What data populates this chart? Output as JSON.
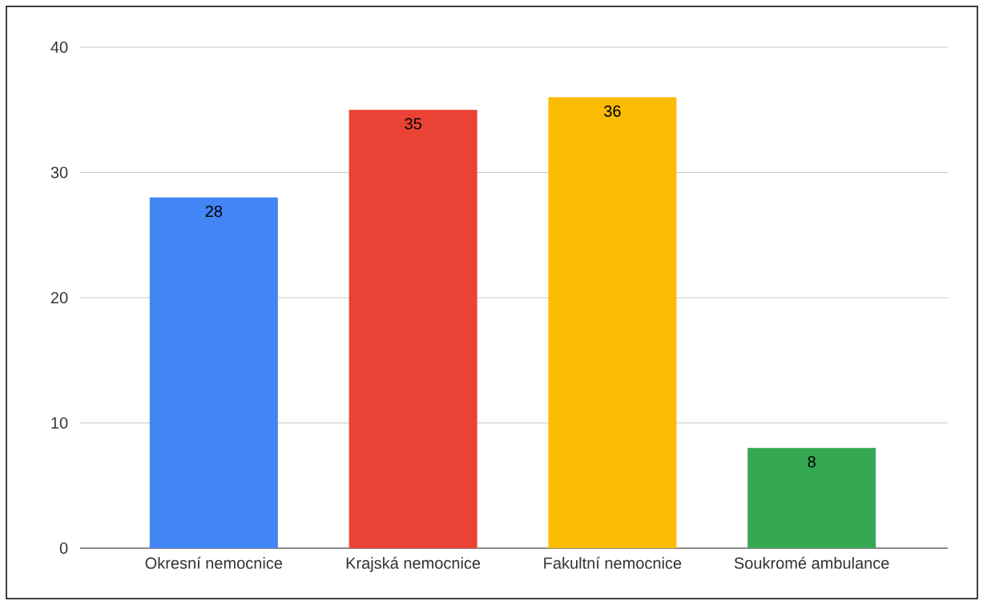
{
  "chart_data": {
    "type": "bar",
    "categories": [
      "Okresní nemocnice",
      "Krajská nemocnice",
      "Fakultní nemocnice",
      "Soukromé ambulance"
    ],
    "values": [
      28,
      35,
      36,
      8
    ],
    "colors": [
      "#4285f4",
      "#ea4335",
      "#fbbc04",
      "#34a853"
    ],
    "ylim": [
      0,
      40
    ],
    "yticks": [
      0,
      10,
      20,
      30,
      40
    ],
    "grid": "y",
    "data_labels": true
  }
}
